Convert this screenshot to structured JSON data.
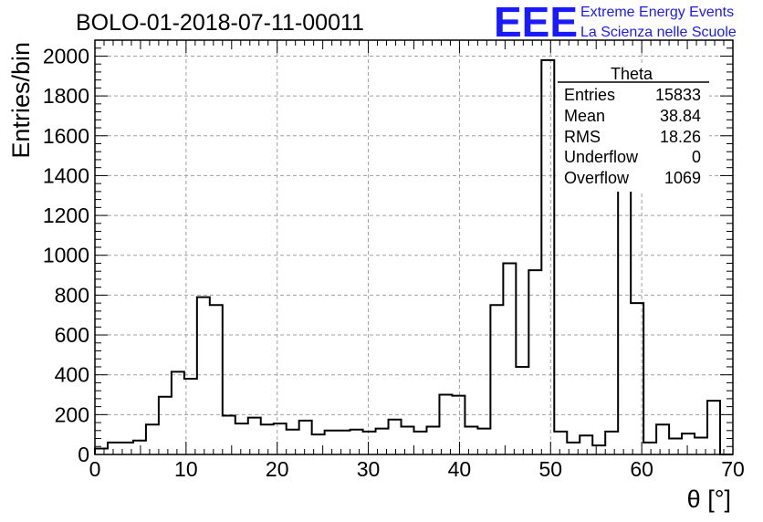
{
  "chart_data": {
    "type": "histogram",
    "title": "BOLO-01-2018-07-11-00011",
    "xlabel": "θ [°]",
    "ylabel": "Entries/bin",
    "xlim": [
      0,
      70
    ],
    "ylim": [
      0,
      2080
    ],
    "xticks": [
      0,
      10,
      20,
      30,
      40,
      50,
      60,
      70
    ],
    "yticks": [
      0,
      200,
      400,
      600,
      800,
      1000,
      1200,
      1400,
      1600,
      1800,
      2000
    ],
    "grid": true,
    "bin_width": 1.4,
    "bin_edges_start": 0,
    "values": [
      30,
      60,
      60,
      70,
      150,
      290,
      415,
      380,
      790,
      750,
      195,
      155,
      185,
      150,
      155,
      125,
      170,
      100,
      120,
      120,
      125,
      115,
      130,
      175,
      140,
      115,
      140,
      300,
      295,
      140,
      130,
      750,
      960,
      440,
      925,
      1980,
      115,
      60,
      95,
      45,
      115,
      1480,
      760,
      60,
      150,
      80,
      105,
      85,
      270,
      0
    ],
    "line_color": "#000000"
  },
  "stats_box": {
    "title": "Theta",
    "rows": [
      {
        "label": "Entries",
        "value": "15833"
      },
      {
        "label": "Mean",
        "value": "38.84"
      },
      {
        "label": "RMS",
        "value": "18.26"
      },
      {
        "label": "Underflow",
        "value": "0"
      },
      {
        "label": "Overflow",
        "value": "1069"
      }
    ]
  },
  "logo": {
    "mark": "EEE",
    "line1": "Extreme Energy Events",
    "line2": "La Scienza nelle Scuole",
    "color": "#1a1aff"
  }
}
